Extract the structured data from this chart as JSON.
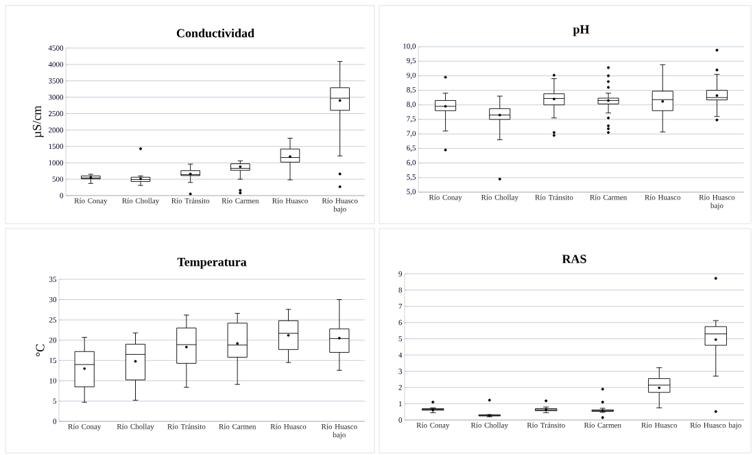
{
  "chart_data": [
    {
      "type": "box",
      "title": "Conductividad",
      "ylabel": "µS/cm",
      "grid": "y",
      "categories": [
        "Río Conay",
        "Río Chollay",
        "Río Tránsito",
        "Río Carmen",
        "Río Huasco",
        "Río Huasco bajo"
      ],
      "ylim": [
        0,
        4500
      ],
      "yticks": [
        0,
        500,
        1000,
        1500,
        2000,
        2500,
        3000,
        3500,
        4000,
        4500
      ],
      "boxes": [
        {
          "low": 370,
          "q1": 510,
          "median": 540,
          "q3": 600,
          "high": 650,
          "mean": 550
        },
        {
          "low": 310,
          "q1": 430,
          "median": 490,
          "q3": 560,
          "high": 600,
          "mean": 510,
          "outliers": [
            1430
          ]
        },
        {
          "low": 400,
          "q1": 610,
          "median": 640,
          "q3": 760,
          "high": 960,
          "mean": 660,
          "outliers": [
            50
          ]
        },
        {
          "low": 500,
          "q1": 770,
          "median": 830,
          "q3": 970,
          "high": 1060,
          "mean": 880,
          "outliers": [
            80,
            160
          ]
        },
        {
          "low": 480,
          "q1": 1020,
          "median": 1160,
          "q3": 1420,
          "high": 1750,
          "mean": 1190
        },
        {
          "low": 1210,
          "q1": 2600,
          "median": 2970,
          "q3": 3290,
          "high": 4090,
          "mean": 2900,
          "outliers": [
            660,
            270
          ]
        }
      ]
    },
    {
      "type": "box",
      "title": "pH",
      "grid": "y",
      "categories": [
        "Río Conay",
        "Río Chollay",
        "Río Tránsito",
        "Río Carmen",
        "Río Huasco",
        "Río Huasco bajo"
      ],
      "ylim": [
        5,
        10
      ],
      "yticks": [
        {
          "value": 5,
          "label": "5,0"
        },
        {
          "value": 5.5,
          "label": "5,5"
        },
        {
          "value": 6,
          "label": "6,0"
        },
        {
          "value": 6.5,
          "label": "6,5"
        },
        {
          "value": 7,
          "label": "7,0"
        },
        {
          "value": 7.5,
          "label": "7,5"
        },
        {
          "value": 8,
          "label": "8,0"
        },
        {
          "value": 8.5,
          "label": "8,5"
        },
        {
          "value": 9,
          "label": "9,0"
        },
        {
          "value": 9.5,
          "label": "9,5"
        },
        {
          "value": 10,
          "label": "10,0"
        }
      ],
      "boxes": [
        {
          "low": 7.1,
          "q1": 7.8,
          "median": 7.95,
          "q3": 8.15,
          "high": 8.4,
          "mean": 7.95,
          "outliers": [
            8.95,
            6.45
          ]
        },
        {
          "low": 6.8,
          "q1": 7.5,
          "median": 7.65,
          "q3": 7.87,
          "high": 8.3,
          "mean": 7.65,
          "outliers": [
            5.45
          ]
        },
        {
          "low": 7.55,
          "q1": 8.0,
          "median": 8.22,
          "q3": 8.38,
          "high": 8.9,
          "mean": 8.2,
          "outliers": [
            9.02,
            7.05,
            6.95
          ]
        },
        {
          "low": 7.72,
          "q1": 8.03,
          "median": 8.15,
          "q3": 8.23,
          "high": 8.4,
          "mean": 8.15,
          "outliers": [
            9.28,
            9.0,
            8.8,
            8.6,
            7.55,
            7.28,
            7.18,
            7.05
          ]
        },
        {
          "low": 7.07,
          "q1": 7.8,
          "median": 8.18,
          "q3": 8.47,
          "high": 9.38,
          "mean": 8.12
        },
        {
          "low": 7.6,
          "q1": 8.17,
          "median": 8.25,
          "q3": 8.5,
          "high": 9.05,
          "mean": 8.32,
          "outliers": [
            9.88,
            9.2,
            7.48
          ]
        }
      ]
    },
    {
      "type": "box",
      "title": "Temperatura",
      "ylabel": "°C",
      "grid": "y",
      "categories": [
        "Río Conay",
        "Río Chollay",
        "Río Tránsito",
        "Río Carmen",
        "Río Huasco",
        "Río Huasco bajo"
      ],
      "ylim": [
        0,
        35
      ],
      "yticks": [
        0,
        5,
        10,
        15,
        20,
        25,
        30,
        35
      ],
      "boxes": [
        {
          "low": 4.7,
          "q1": 8.5,
          "median": 14,
          "q3": 17.2,
          "high": 20.7,
          "mean": 13
        },
        {
          "low": 5.2,
          "q1": 10.2,
          "median": 16.5,
          "q3": 19,
          "high": 21.8,
          "mean": 14.8
        },
        {
          "low": 8.4,
          "q1": 14.3,
          "median": 18.9,
          "q3": 23,
          "high": 26.2,
          "mean": 18.3
        },
        {
          "low": 9.1,
          "q1": 15.8,
          "median": 18.8,
          "q3": 24.2,
          "high": 26.6,
          "mean": 19.2
        },
        {
          "low": 14.5,
          "q1": 17.7,
          "median": 21.7,
          "q3": 24.8,
          "high": 27.6,
          "mean": 21.2
        },
        {
          "low": 12.6,
          "q1": 17,
          "median": 20.4,
          "q3": 22.8,
          "high": 30,
          "mean": 20.5
        }
      ]
    },
    {
      "type": "box",
      "title": "RAS",
      "grid": "y",
      "categories": [
        "Río Conay",
        "Río Chollay",
        "Río Tránsito",
        "Río Carmen",
        "Río Huasco",
        "Río Huasco bajo"
      ],
      "ylim": [
        0,
        9
      ],
      "yticks": [
        0,
        1,
        2,
        3,
        4,
        5,
        6,
        7,
        8,
        9
      ],
      "boxes": [
        {
          "low": 0.45,
          "q1": 0.6,
          "median": 0.65,
          "q3": 0.7,
          "high": 0.75,
          "mean": 0.62,
          "outliers": [
            1.1
          ]
        },
        {
          "low": 0.2,
          "q1": 0.25,
          "median": 0.28,
          "q3": 0.32,
          "high": 0.33,
          "mean": 0.28,
          "outliers": [
            1.22
          ]
        },
        {
          "low": 0.45,
          "q1": 0.57,
          "median": 0.63,
          "q3": 0.7,
          "high": 0.8,
          "mean": 0.65,
          "outliers": [
            1.18
          ]
        },
        {
          "low": 0.47,
          "q1": 0.53,
          "median": 0.58,
          "q3": 0.62,
          "high": 0.72,
          "mean": 0.58,
          "outliers": [
            1.9,
            1.1,
            0.15
          ]
        },
        {
          "low": 0.75,
          "q1": 1.7,
          "median": 2.15,
          "q3": 2.55,
          "high": 3.22,
          "mean": 1.98
        },
        {
          "low": 2.7,
          "q1": 4.6,
          "median": 5.3,
          "q3": 5.75,
          "high": 6.12,
          "mean": 4.95,
          "outliers": [
            8.72,
            0.52
          ]
        }
      ]
    }
  ]
}
